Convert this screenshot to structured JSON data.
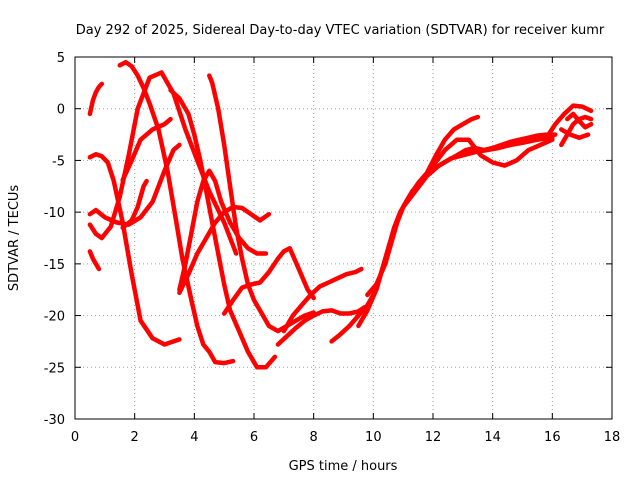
{
  "chart_data": {
    "type": "scatter",
    "title": "Day 292 of 2025, Sidereal Day-to-day VTEC variation (SDTVAR) for receiver kumr",
    "xlabel": "GPS time / hours",
    "ylabel": "SDTVAR / TECUs",
    "xlim": [
      0,
      18
    ],
    "ylim": [
      -30,
      5
    ],
    "xticks": [
      0,
      2,
      4,
      6,
      8,
      10,
      12,
      14,
      16,
      18
    ],
    "yticks": [
      -30,
      -25,
      -20,
      -15,
      -10,
      -5,
      0,
      5
    ],
    "grid": true,
    "marker": "+",
    "color": "#ff0000",
    "series": [
      {
        "x": [
          0.5,
          0.6,
          0.7,
          0.8,
          0.9
        ],
        "y": [
          -0.5,
          0.8,
          1.6,
          2.1,
          2.4
        ]
      },
      {
        "x": [
          0.5,
          0.6,
          0.7,
          0.8
        ],
        "y": [
          -13.8,
          -14.5,
          -15.0,
          -15.5
        ]
      },
      {
        "x": [
          0.5,
          0.7,
          0.9,
          1.2,
          1.5,
          1.8,
          2.1,
          2.5,
          2.9,
          3.3,
          3.7,
          4.1,
          4.5,
          5.0,
          5.4
        ],
        "y": [
          -11.2,
          -12.1,
          -12.5,
          -11.4,
          -8.5,
          -4.5,
          0.0,
          3.0,
          3.5,
          1.5,
          -2.0,
          -5.0,
          -8.0,
          -11.0,
          -14.0
        ]
      },
      {
        "x": [
          0.5,
          0.7,
          1.0,
          1.4,
          1.8,
          2.2,
          2.6,
          3.0,
          3.3,
          3.5
        ],
        "y": [
          -10.2,
          -9.8,
          -10.5,
          -11.0,
          -11.2,
          -10.5,
          -9.0,
          -6.0,
          -4.0,
          -3.5
        ]
      },
      {
        "x": [
          0.5,
          0.7,
          0.9,
          1.1,
          1.3,
          1.6,
          1.9,
          2.2,
          2.6,
          3.0,
          3.5
        ],
        "y": [
          -4.7,
          -4.4,
          -4.6,
          -5.2,
          -7.0,
          -11.0,
          -16.0,
          -20.5,
          -22.2,
          -22.8,
          -22.3
        ]
      },
      {
        "x": [
          1.5,
          1.7,
          1.9,
          2.1,
          2.3,
          2.5,
          2.8,
          3.1,
          3.4,
          3.6,
          3.9,
          4.1,
          4.3,
          4.5,
          4.7,
          5.0,
          5.3
        ],
        "y": [
          4.2,
          4.5,
          4.1,
          3.2,
          2.0,
          0.5,
          -2.0,
          -6.0,
          -11.0,
          -14.5,
          -18.5,
          -21.0,
          -22.8,
          -23.5,
          -24.5,
          -24.6,
          -24.4
        ]
      },
      {
        "x": [
          1.6,
          1.9,
          2.2,
          2.6,
          3.0,
          3.2
        ],
        "y": [
          -6.9,
          -5.0,
          -3.0,
          -2.0,
          -1.5,
          -1.0
        ]
      },
      {
        "x": [
          1.6,
          1.9,
          2.1,
          2.3,
          2.4
        ],
        "y": [
          -11.5,
          -10.8,
          -9.5,
          -7.5,
          -7.0
        ]
      },
      {
        "x": [
          3.2,
          3.5,
          3.8,
          4.0,
          4.2,
          4.4,
          4.6,
          4.8,
          5.0,
          5.2,
          5.5,
          5.8,
          6.1,
          6.4,
          6.7
        ],
        "y": [
          1.8,
          1.0,
          -0.5,
          -2.5,
          -5.0,
          -8.0,
          -11.0,
          -14.0,
          -17.0,
          -19.5,
          -21.5,
          -23.5,
          -25.0,
          -25.0,
          -24.0
        ]
      },
      {
        "x": [
          4.5,
          4.6,
          4.8,
          5.0,
          5.2,
          5.4,
          5.6,
          5.8,
          6.0,
          6.2,
          6.5,
          6.8,
          7.1,
          7.4,
          7.7,
          8.0
        ],
        "y": [
          3.2,
          2.5,
          0.0,
          -3.5,
          -7.5,
          -11.5,
          -14.5,
          -17.0,
          -18.5,
          -19.5,
          -21.0,
          -21.5,
          -21.0,
          -20.5,
          -20.0,
          -19.7
        ]
      },
      {
        "x": [
          3.5,
          3.7,
          3.9,
          4.1,
          4.3,
          4.5,
          4.7,
          4.9,
          5.2,
          5.5,
          5.8,
          6.1,
          6.4
        ],
        "y": [
          -17.5,
          -15.0,
          -12.0,
          -9.0,
          -7.0,
          -6.0,
          -7.0,
          -9.0,
          -11.0,
          -12.5,
          -13.5,
          -14.0,
          -14.0
        ]
      },
      {
        "x": [
          3.5,
          3.8,
          4.1,
          4.4,
          4.7,
          5.0,
          5.3,
          5.6,
          5.9,
          6.2,
          6.5
        ],
        "y": [
          -17.8,
          -16.0,
          -14.0,
          -12.5,
          -11.0,
          -10.0,
          -9.5,
          -9.6,
          -10.2,
          -10.8,
          -10.2
        ]
      },
      {
        "x": [
          5.0,
          5.3,
          5.6,
          5.9,
          6.2,
          6.5,
          6.8,
          7.0,
          7.2,
          7.5,
          7.8,
          8.0
        ],
        "y": [
          -19.8,
          -18.5,
          -17.3,
          -17.0,
          -16.8,
          -15.8,
          -14.5,
          -13.8,
          -13.5,
          -15.5,
          -17.5,
          -18.3
        ]
      },
      {
        "x": [
          6.8,
          7.1,
          7.4,
          7.7,
          8.0,
          8.3,
          8.6,
          8.9,
          9.2,
          9.5,
          9.7
        ],
        "y": [
          -22.8,
          -22.0,
          -21.2,
          -20.5,
          -20.0,
          -19.6,
          -19.5,
          -19.8,
          -19.8,
          -19.6,
          -19.2
        ]
      },
      {
        "x": [
          7.0,
          7.3,
          7.6,
          7.9,
          8.2,
          8.5,
          8.8,
          9.1,
          9.4,
          9.6
        ],
        "y": [
          -21.5,
          -20.0,
          -19.0,
          -18.0,
          -17.2,
          -16.8,
          -16.4,
          -16.0,
          -15.8,
          -15.5
        ]
      },
      {
        "x": [
          8.6,
          8.9,
          9.2,
          9.5,
          9.8,
          10.1,
          10.3,
          10.5,
          10.7,
          11.0,
          11.4,
          11.8,
          12.2,
          12.6,
          13.0,
          13.4,
          13.8,
          14.2,
          14.6,
          15.0,
          15.5,
          16.0
        ],
        "y": [
          -22.5,
          -21.8,
          -21.0,
          -20.0,
          -19.0,
          -17.5,
          -15.5,
          -13.5,
          -11.5,
          -9.5,
          -8.0,
          -6.5,
          -5.5,
          -4.8,
          -4.5,
          -4.2,
          -4.0,
          -3.8,
          -3.5,
          -3.3,
          -3.0,
          -2.8
        ]
      },
      {
        "x": [
          9.5,
          9.8,
          10.1,
          10.3,
          10.5,
          10.7,
          10.9,
          11.2,
          11.5,
          11.8,
          12.1,
          12.4,
          12.7,
          13.0,
          13.3,
          13.5
        ],
        "y": [
          -21.0,
          -19.5,
          -17.5,
          -15.5,
          -13.5,
          -11.5,
          -10.0,
          -8.5,
          -7.2,
          -6.2,
          -4.5,
          -3.0,
          -2.0,
          -1.5,
          -1.0,
          -0.8
        ]
      },
      {
        "x": [
          9.8,
          10.1,
          10.4,
          10.6,
          10.8,
          11.0,
          11.3,
          11.6,
          11.9,
          12.2,
          12.5,
          12.8,
          13.1,
          13.4,
          13.7,
          14.0,
          14.3,
          14.6,
          14.9,
          15.2,
          15.5,
          15.8,
          16.1
        ],
        "y": [
          -18.0,
          -17.0,
          -15.0,
          -13.0,
          -11.0,
          -9.5,
          -8.0,
          -7.0,
          -6.0,
          -5.5,
          -5.0,
          -4.5,
          -4.0,
          -3.8,
          -4.0,
          -3.8,
          -3.5,
          -3.2,
          -3.0,
          -2.8,
          -2.6,
          -2.5,
          -2.5
        ]
      },
      {
        "x": [
          12.0,
          12.4,
          12.8,
          13.2,
          13.6,
          14.0,
          14.4,
          14.8,
          15.2,
          15.6,
          16.0
        ],
        "y": [
          -5.5,
          -4.0,
          -3.0,
          -3.0,
          -4.5,
          -5.2,
          -5.5,
          -5.0,
          -4.0,
          -3.5,
          -3.0
        ]
      },
      {
        "x": [
          15.8,
          16.1,
          16.4,
          16.7,
          17.0,
          17.3
        ],
        "y": [
          -2.8,
          -1.5,
          -0.5,
          0.3,
          0.2,
          -0.2
        ]
      },
      {
        "x": [
          16.3,
          16.5,
          16.7,
          16.9,
          17.1,
          17.3
        ],
        "y": [
          -3.5,
          -2.5,
          -1.5,
          -1.0,
          -0.8,
          -1.0
        ]
      },
      {
        "x": [
          16.3,
          16.6,
          16.9,
          17.2
        ],
        "y": [
          -2.0,
          -2.5,
          -2.8,
          -2.5
        ]
      },
      {
        "x": [
          16.5,
          16.7,
          16.9,
          17.1,
          17.3
        ],
        "y": [
          -1.0,
          -0.5,
          -1.2,
          -1.8,
          -1.5
        ]
      }
    ]
  }
}
